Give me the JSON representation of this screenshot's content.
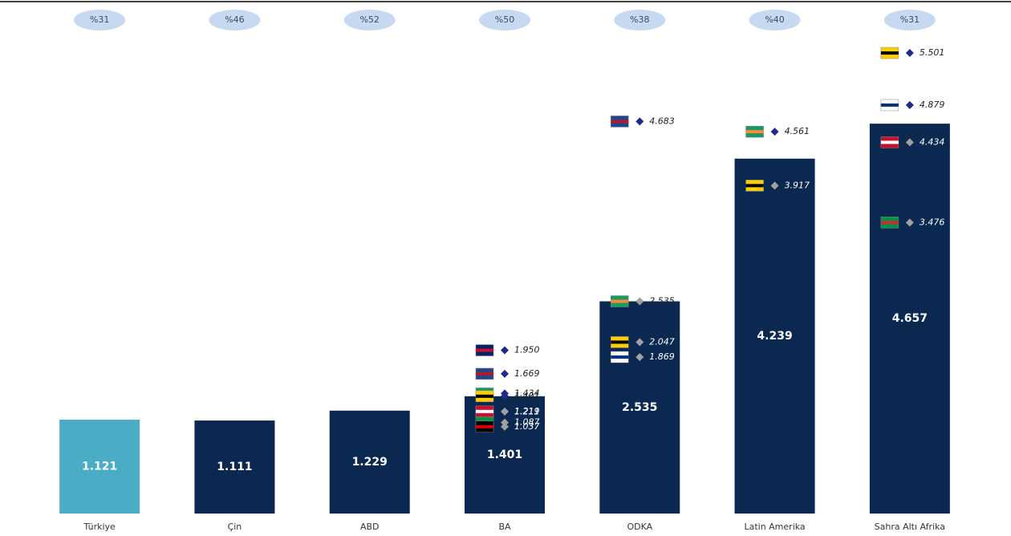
{
  "chart_data": {
    "type": "bar",
    "categories": [
      "Türkiye",
      "Çin",
      "ABD",
      "BA",
      "ODKA",
      "Latin Amerika",
      "Sahra Altı Afrika"
    ],
    "values": [
      1121,
      1111,
      1229,
      1401,
      2535,
      4239,
      4657
    ],
    "value_labels": [
      "1.121",
      "1.111",
      "1.229",
      "1.401",
      "2.535",
      "4.239",
      "4.657"
    ],
    "colors": [
      "#4bacc6",
      "#0b2850",
      "#0b2850",
      "#0b2850",
      "#0b2850",
      "#0b2850",
      "#0b2850"
    ],
    "shares": [
      {
        "value": 31,
        "label": "%31"
      },
      {
        "value": 46,
        "label": "%46"
      },
      {
        "value": 52,
        "label": "%52"
      },
      {
        "value": 50,
        "label": "%50"
      },
      {
        "value": 38,
        "label": "%38"
      },
      {
        "value": 40,
        "label": "%40"
      },
      {
        "value": 31,
        "label": "%31"
      }
    ],
    "ylim": [
      0,
      6000
    ],
    "point_values": [
      [],
      [],
      [],
      [
        1950,
        1669,
        1434,
        1401,
        1211,
        1219,
        1087,
        1037
      ],
      [
        4683,
        2535,
        2047,
        1869
      ],
      [
        4561,
        3917
      ],
      [
        5501,
        4879,
        4434,
        3476
      ]
    ],
    "point_labels": [
      [],
      [],
      [],
      [
        "1.950",
        "1.669",
        "1.434",
        "1.401",
        "1.211",
        "1.219",
        "1.087",
        "1.037"
      ],
      [
        "4.683",
        "2.535",
        "2.047",
        "1.869"
      ],
      [
        "4.561",
        "3.917"
      ],
      [
        "5.501",
        "4.879",
        "4.434",
        "3.476"
      ]
    ],
    "point_colors": [
      [],
      [],
      [],
      [
        "#1f2a8a",
        "#1f2a8a",
        "#1f2a8a",
        "#1f2a8a",
        "#1f2a8a",
        "#a0a0a0",
        "#a0a0a0",
        "#a0a0a0"
      ],
      [
        "#1f2a8a",
        "#a0a0a0",
        "#a0a0a0",
        "#a0a0a0"
      ],
      [
        "#1f2a8a",
        "#a0a0a0"
      ],
      [
        "#1f2a8a",
        "#1f2a8a",
        "#a0a0a0",
        "#a0a0a0"
      ]
    ]
  }
}
